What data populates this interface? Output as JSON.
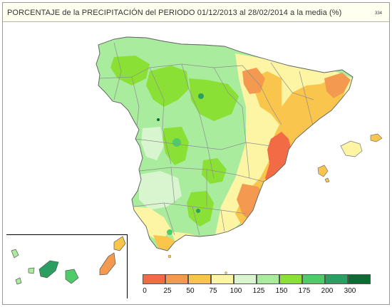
{
  "header": {
    "title": "PORCENTAJE de la PRECIPITACIÓN del PERIODO 01/12/2013 al 28/02/2014 a la media (%)",
    "code": "334"
  },
  "legend": {
    "labels": [
      "0",
      "25",
      "50",
      "75",
      "100",
      "125",
      "150",
      "175",
      "200",
      "300"
    ],
    "colors": [
      "#f26b45",
      "#f39a50",
      "#f9c54c",
      "#fdf5a4",
      "#d8f5d0",
      "#a9ec9e",
      "#8be036",
      "#4fcb6a",
      "#2b9f62",
      "#0d6b34"
    ]
  },
  "colors": {
    "background": "#ffffff",
    "header_bg": "#fffff0",
    "boundary": "#8f8f8f"
  }
}
